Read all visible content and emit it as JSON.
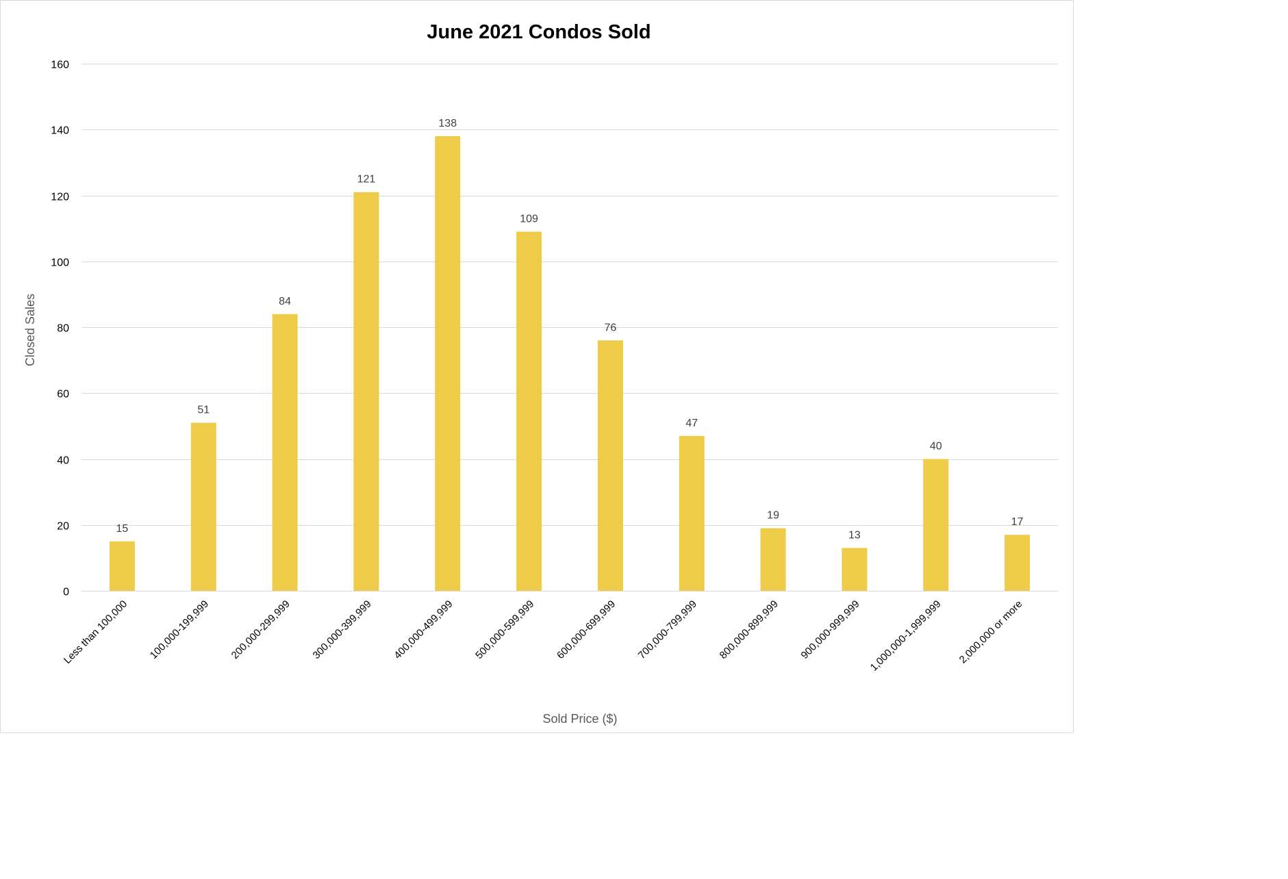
{
  "chart_data": {
    "type": "bar",
    "title": "June 2021 Condos Sold",
    "xlabel": "Sold Price ($)",
    "ylabel": "Closed Sales",
    "categories": [
      "Less than 100,000",
      "100,000-199,999",
      "200,000-299,999",
      "300,000-399,999",
      "400,000-499,999",
      "500,000-599,999",
      "600,000-699,999",
      "700,000-799,999",
      "800,000-899,999",
      "900,000-999,999",
      "1,000,000-1,999,999",
      "2,000,000 or more"
    ],
    "values": [
      15,
      51,
      84,
      121,
      138,
      109,
      76,
      47,
      19,
      13,
      40,
      17
    ],
    "ylim": [
      0,
      160
    ],
    "yticks": [
      0,
      20,
      40,
      60,
      80,
      100,
      120,
      140,
      160
    ],
    "grid": true,
    "legend": "none",
    "data_labels": true,
    "colors": {
      "bar": "#EECC4A",
      "gridline": "#D9D9D9",
      "data_label": "#404040",
      "axis_title": "#595959"
    }
  }
}
